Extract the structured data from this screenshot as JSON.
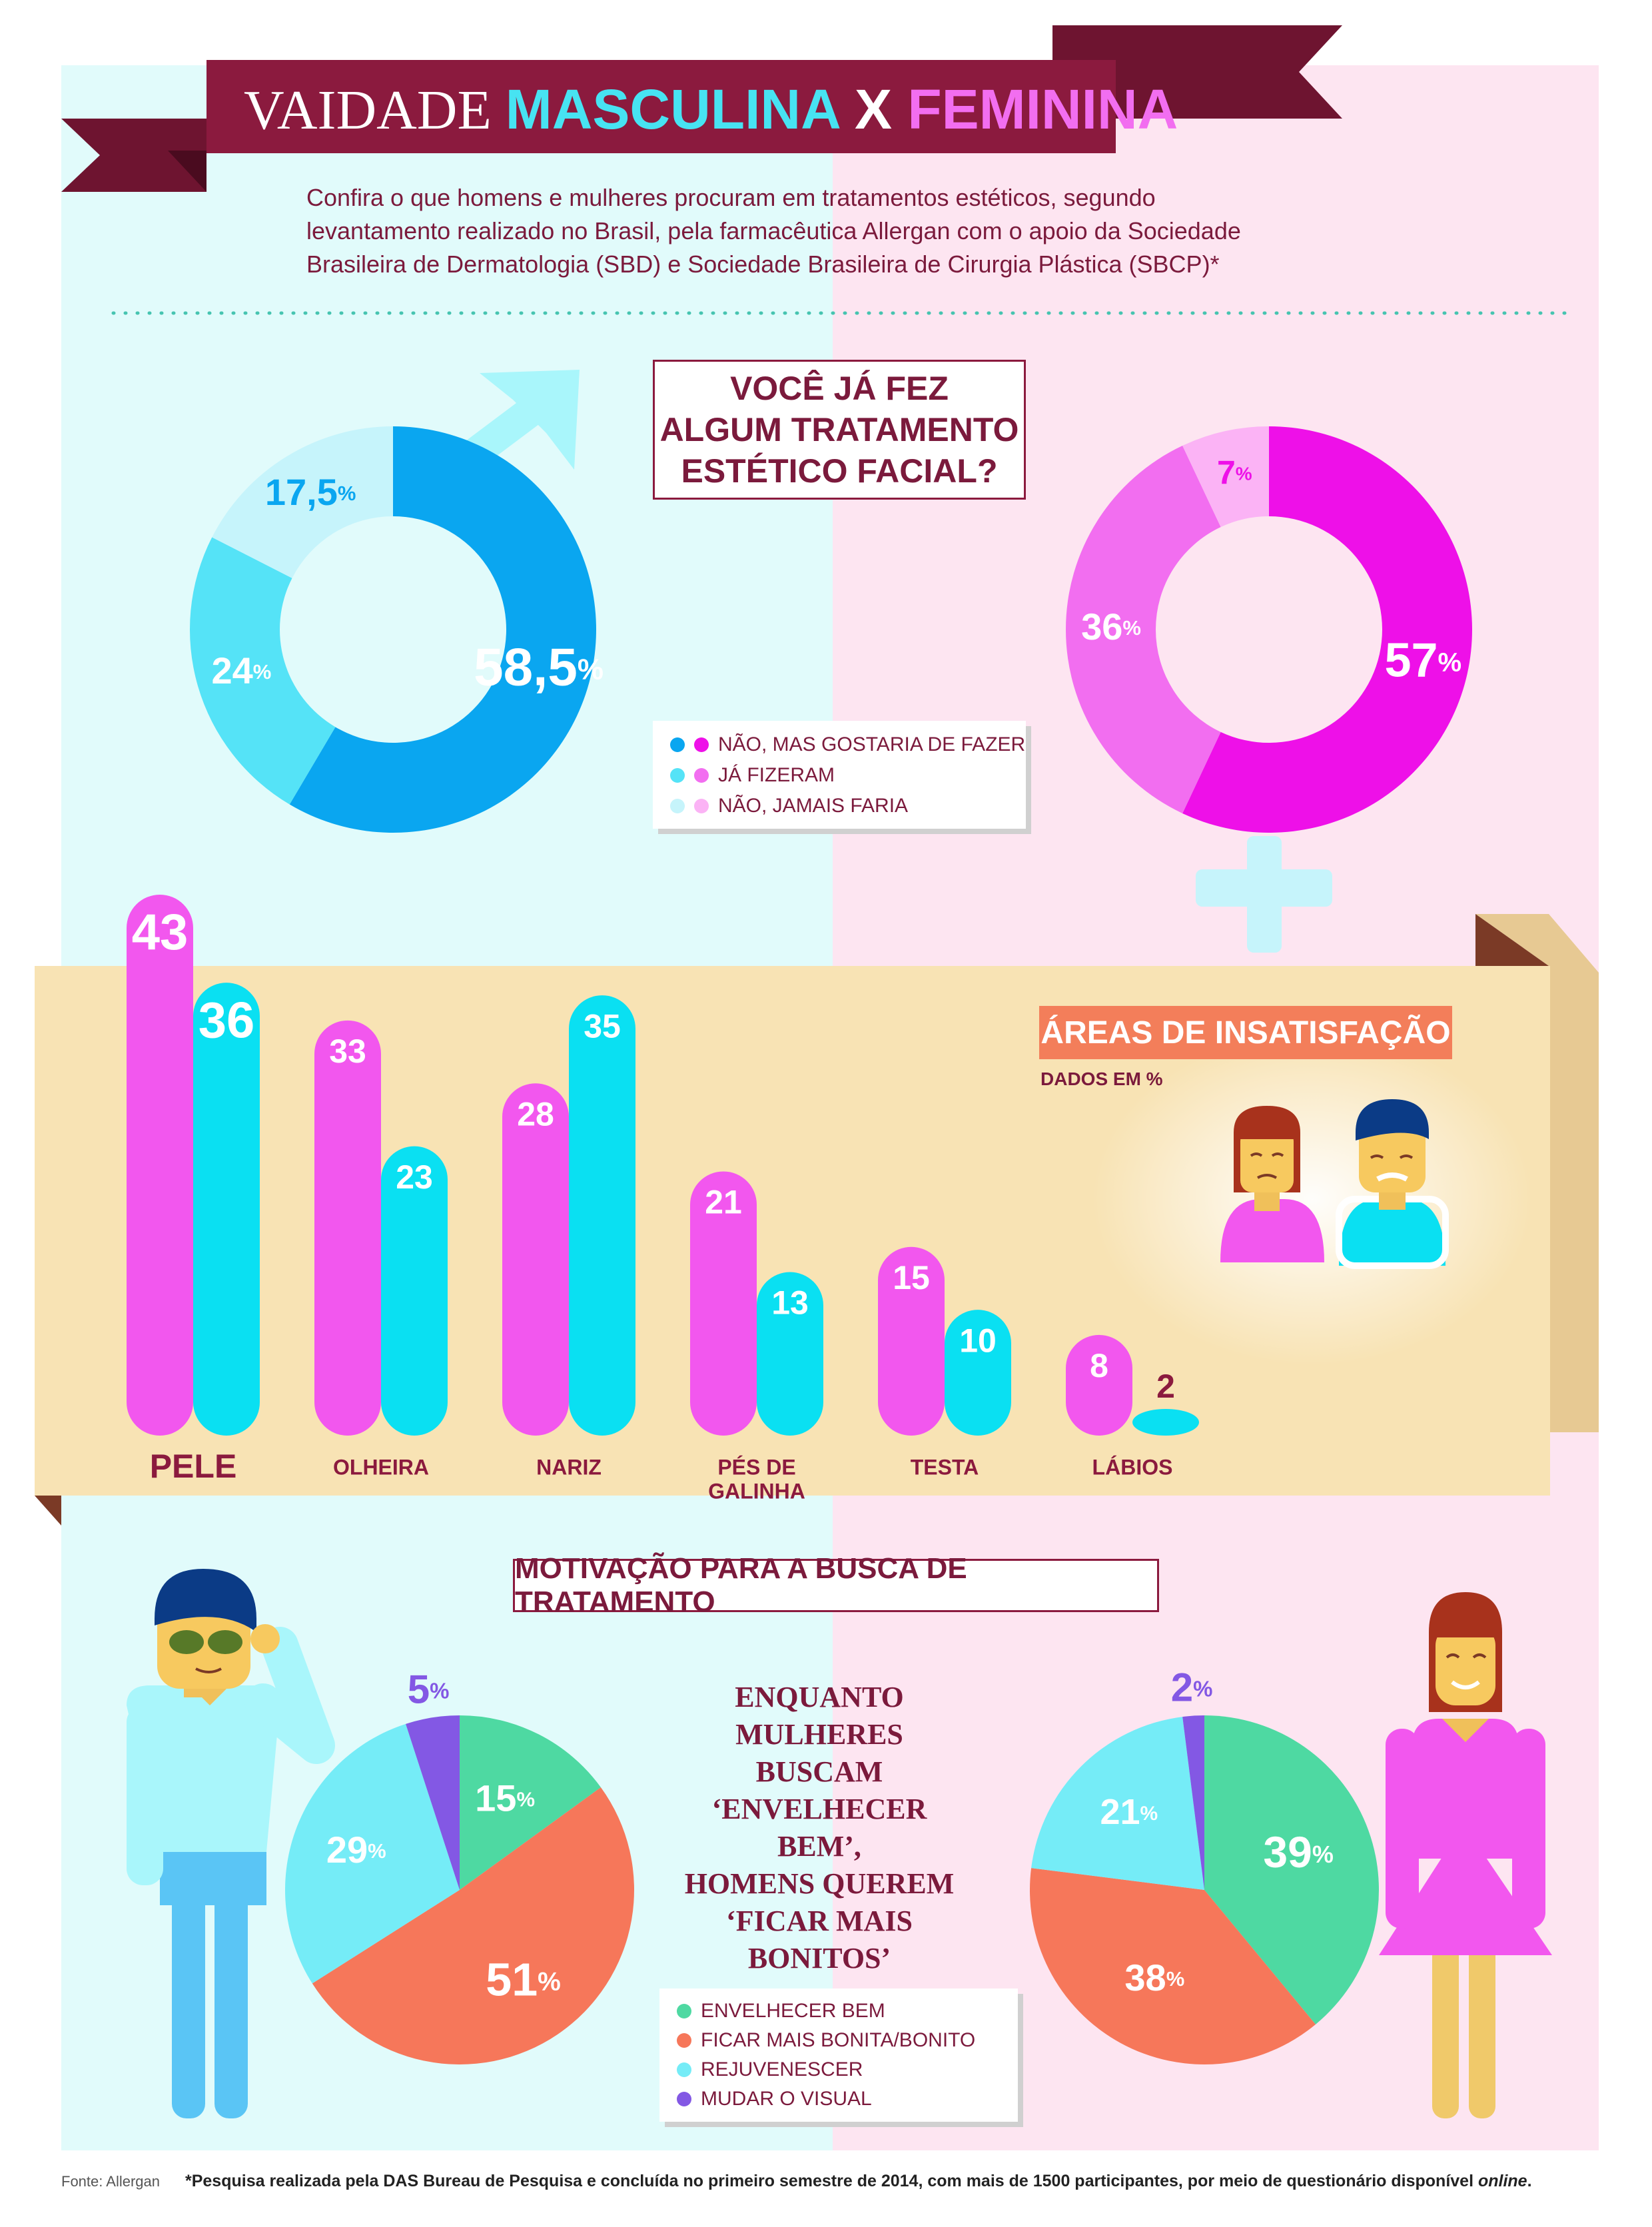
{
  "header": {
    "title_part1": "VAIDADE ",
    "title_part2": "MASCULINA ",
    "title_part3": "X ",
    "title_part4": "FEMININA"
  },
  "subtitle_lines": [
    "Confira o que homens e mulheres procuram em tratamentos estéticos, segundo",
    "levantamento realizado no Brasil, pela farmacêutica Allergan com o apoio da Sociedade",
    "Brasileira de Dermatologia (SBD) e Sociedade Brasileira de Cirurgia Plástica (SBCP)*"
  ],
  "question_lines": [
    "VOCÊ JÁ FEZ",
    "ALGUM TRATAMENTO",
    "ESTÉTICO FACIAL?"
  ],
  "legend1": [
    "NÃO, MAS GOSTARIA DE FAZER",
    "JÁ FIZERAM",
    "NÃO, JAMAIS FARIA"
  ],
  "areas": {
    "title": "ÁREAS DE INSATISFAÇÃO",
    "subtitle": "DADOS EM %"
  },
  "motivation": {
    "title": "MOTIVAÇÃO PARA A BUSCA DE TRATAMENTO",
    "quote_lines": [
      "ENQUANTO",
      "MULHERES BUSCAM",
      "‘ENVELHECER BEM’,",
      "HOMENS QUEREM",
      "‘FICAR MAIS",
      "BONITOS’"
    ],
    "legend": [
      "ENVELHECER BEM",
      "FICAR MAIS BONITA/BONITO",
      "REJUVENESCER",
      "MUDAR O VISUAL"
    ]
  },
  "footer": {
    "fonte": "Fonte: Allergan",
    "note": "*Pesquisa realizada pela DAS Bureau de Pesquisa e concluída no primeiro semestre de 2014, com mais de 1500 participantes, por meio de questionário disponível ",
    "note_italic": "online",
    "note_end": "."
  },
  "colors": {
    "men_1": "#0aa6f0",
    "men_2": "#55e3f7",
    "men_3": "#c6f4fb",
    "women_1": "#ee10e8",
    "women_2": "#f26ef0",
    "women_3": "#fbb3f5",
    "bar_women": "#f257ee",
    "bar_men": "#0ae0f2",
    "envelhecer": "#4ed9a2",
    "bonito": "#f6775a",
    "rejuvenescer": "#75ecf7",
    "visual": "#8358e4",
    "maroon": "#8b1a3e",
    "orange": "#f37e5a",
    "band": "#f8e3b4"
  },
  "chart_data": [
    {
      "type": "pie",
      "subtype": "donut",
      "group": "men",
      "labels": [
        "NÃO, MAS GOSTARIA DE FAZER",
        "JÁ FIZERAM",
        "NÃO, JAMAIS FARIA"
      ],
      "values": [
        58.5,
        24,
        17.5
      ],
      "value_labels": [
        "58,5",
        "24",
        "17,5"
      ],
      "unit": "%"
    },
    {
      "type": "pie",
      "subtype": "donut",
      "group": "women",
      "labels": [
        "NÃO, MAS GOSTARIA DE FAZER",
        "JÁ FIZERAM",
        "NÃO, JAMAIS FARIA"
      ],
      "values": [
        57,
        36,
        7
      ],
      "value_labels": [
        "57",
        "36",
        "7"
      ],
      "unit": "%"
    },
    {
      "type": "bar",
      "categories": [
        "PELE",
        "OLHEIRA",
        "NARIZ",
        "PÉS DE GALINHA",
        "TESTA",
        "LÁBIOS"
      ],
      "category_lines": [
        [
          "PELE"
        ],
        [
          "OLHEIRA"
        ],
        [
          "NARIZ"
        ],
        [
          "PÉS DE",
          "GALINHA"
        ],
        [
          "TESTA"
        ],
        [
          "LÁBIOS"
        ]
      ],
      "series": [
        {
          "group": "women",
          "values": [
            43,
            33,
            28,
            21,
            15,
            8
          ]
        },
        {
          "group": "men",
          "values": [
            36,
            23,
            35,
            13,
            10,
            2
          ]
        }
      ],
      "ylim": [
        0,
        43
      ],
      "unit": "%"
    },
    {
      "type": "pie",
      "group": "men",
      "labels": [
        "ENVELHECER BEM",
        "FICAR MAIS BONITA/BONITO",
        "REJUVENESCER",
        "MUDAR O VISUAL"
      ],
      "values": [
        15,
        51,
        29,
        5
      ],
      "unit": "%"
    },
    {
      "type": "pie",
      "group": "women",
      "labels": [
        "ENVELHECER BEM",
        "FICAR MAIS BONITA/BONITO",
        "REJUVENESCER",
        "MUDAR O VISUAL"
      ],
      "values": [
        39,
        38,
        21,
        2
      ],
      "unit": "%"
    }
  ]
}
